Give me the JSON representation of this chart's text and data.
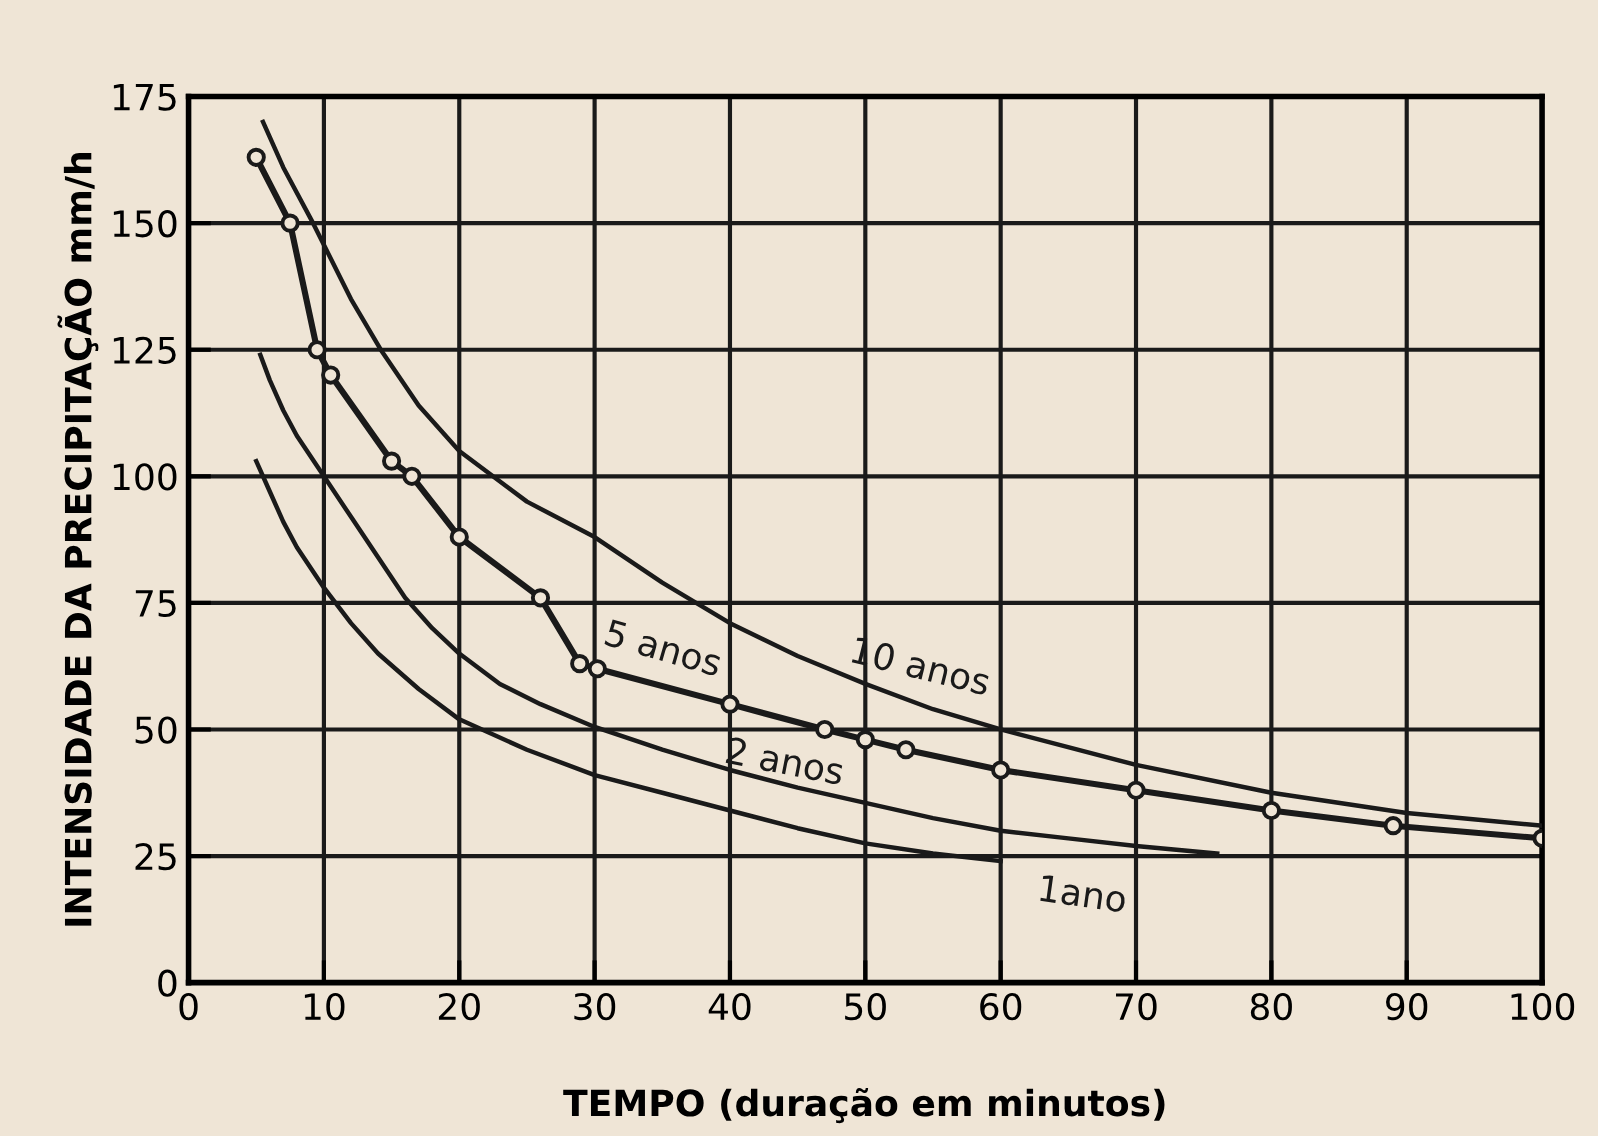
{
  "chart_data": {
    "type": "line",
    "xlabel": "TEMPO (duração em minutos)",
    "ylabel": "INTENSIDADE DA PRECIPITAÇÃO mm/h",
    "xlim": [
      0,
      100
    ],
    "ylim": [
      0,
      175
    ],
    "xticks": [
      0,
      10,
      20,
      30,
      40,
      50,
      60,
      70,
      80,
      90,
      100
    ],
    "yticks": [
      0,
      25,
      50,
      75,
      100,
      125,
      150,
      175
    ],
    "grid": true,
    "legend": false,
    "series": [
      {
        "name": "10 anos",
        "color": "#1a1a1a",
        "marker": "none",
        "x": [
          5.5,
          7,
          9.2,
          12,
          14.2,
          17,
          20,
          25,
          30,
          35,
          40,
          45,
          50,
          55,
          60,
          70,
          80,
          90,
          100
        ],
        "values": [
          170,
          161,
          150,
          135,
          125,
          114,
          105,
          95,
          88,
          79,
          71,
          64.5,
          59,
          54,
          50,
          43,
          37.5,
          33.5,
          31
        ]
      },
      {
        "name": "5 anos",
        "color": "#1a1a1a",
        "marker": "circle",
        "x": [
          5,
          7.5,
          9.5,
          10.5,
          15,
          16.5,
          20,
          26,
          28.9,
          30.2,
          40,
          47,
          50,
          53,
          60,
          70,
          80,
          89,
          100
        ],
        "values": [
          163,
          150,
          125,
          120,
          103,
          100,
          88,
          76,
          63,
          62,
          55,
          50,
          48,
          46,
          42,
          38,
          34,
          31,
          28.5
        ]
      },
      {
        "name": "2 anos",
        "color": "#1a1a1a",
        "marker": "none",
        "x": [
          5.3,
          6,
          7,
          8,
          10,
          12,
          14,
          16,
          18,
          20,
          23,
          26,
          30,
          35,
          40,
          45,
          50,
          55,
          60,
          65,
          70,
          76
        ],
        "values": [
          124,
          119,
          113,
          108,
          100,
          92,
          84,
          76,
          70,
          65,
          59,
          55,
          50.5,
          46,
          42,
          38.5,
          35.5,
          32.5,
          30,
          28.5,
          27,
          25.5
        ]
      },
      {
        "name": "1ano",
        "color": "#1a1a1a",
        "marker": "none",
        "x": [
          5,
          6,
          7,
          8,
          10,
          12,
          14,
          17,
          20,
          25,
          30,
          35,
          40,
          45,
          50,
          55,
          60
        ],
        "values": [
          103,
          97,
          91,
          86,
          78,
          71,
          65,
          58,
          52,
          46,
          41,
          37.5,
          34,
          30.5,
          27.5,
          25.5,
          24
        ]
      }
    ]
  }
}
